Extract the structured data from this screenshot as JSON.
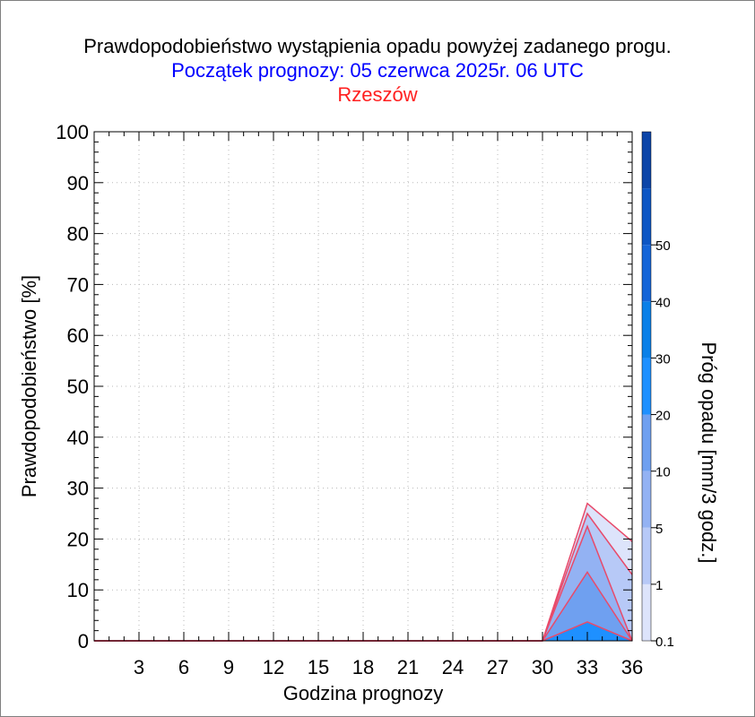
{
  "chart_data": {
    "type": "area",
    "title": "Prawdopodobieństwo wystąpienia opadu powyżej zadanego progu.",
    "subtitle": "Początek prognozy: 05 czerwca 2025r. 06 UTC",
    "location": "Rzeszów",
    "xlabel": "Godzina prognozy",
    "ylabel": "Prawdopodobieństwo [%]",
    "colorbar_label": "Próg opadu [mm/3 godz.]",
    "xlim": [
      0,
      36
    ],
    "ylim": [
      0,
      100
    ],
    "x_ticks": [
      3,
      6,
      9,
      12,
      15,
      18,
      21,
      24,
      27,
      30,
      33,
      36
    ],
    "y_ticks": [
      0,
      10,
      20,
      30,
      40,
      50,
      60,
      70,
      80,
      90,
      100
    ],
    "grid": true,
    "x": [
      0,
      3,
      6,
      9,
      12,
      15,
      18,
      21,
      24,
      27,
      30,
      33,
      36
    ],
    "series": [
      {
        "name": "0.1",
        "color": "#dde4fb",
        "values": [
          0,
          0,
          0,
          0,
          0,
          0,
          0,
          0,
          0,
          0,
          0,
          27,
          19.5
        ]
      },
      {
        "name": "1",
        "color": "#b7c9f7",
        "values": [
          0,
          0,
          0,
          0,
          0,
          0,
          0,
          0,
          0,
          0,
          0,
          25,
          13
        ]
      },
      {
        "name": "5",
        "color": "#93b2f3",
        "values": [
          0,
          0,
          0,
          0,
          0,
          0,
          0,
          0,
          0,
          0,
          0,
          22.5,
          0
        ]
      },
      {
        "name": "10",
        "color": "#6fa0f0",
        "values": [
          0,
          0,
          0,
          0,
          0,
          0,
          0,
          0,
          0,
          0,
          0,
          13.5,
          0
        ]
      },
      {
        "name": "20",
        "color": "#1e90ff",
        "values": [
          0,
          0,
          0,
          0,
          0,
          0,
          0,
          0,
          0,
          0,
          0,
          3.7,
          0
        ]
      }
    ],
    "colorbar": {
      "labels": [
        "0.1",
        "1",
        "5",
        "10",
        "20",
        "30",
        "40",
        "50"
      ],
      "colors": [
        "#dde4fb",
        "#b7c9f7",
        "#93b2f3",
        "#6fa0f0",
        "#1e90ff",
        "#0a80e8",
        "#1565d8",
        "#0d56c4",
        "#0c45a8"
      ]
    }
  }
}
